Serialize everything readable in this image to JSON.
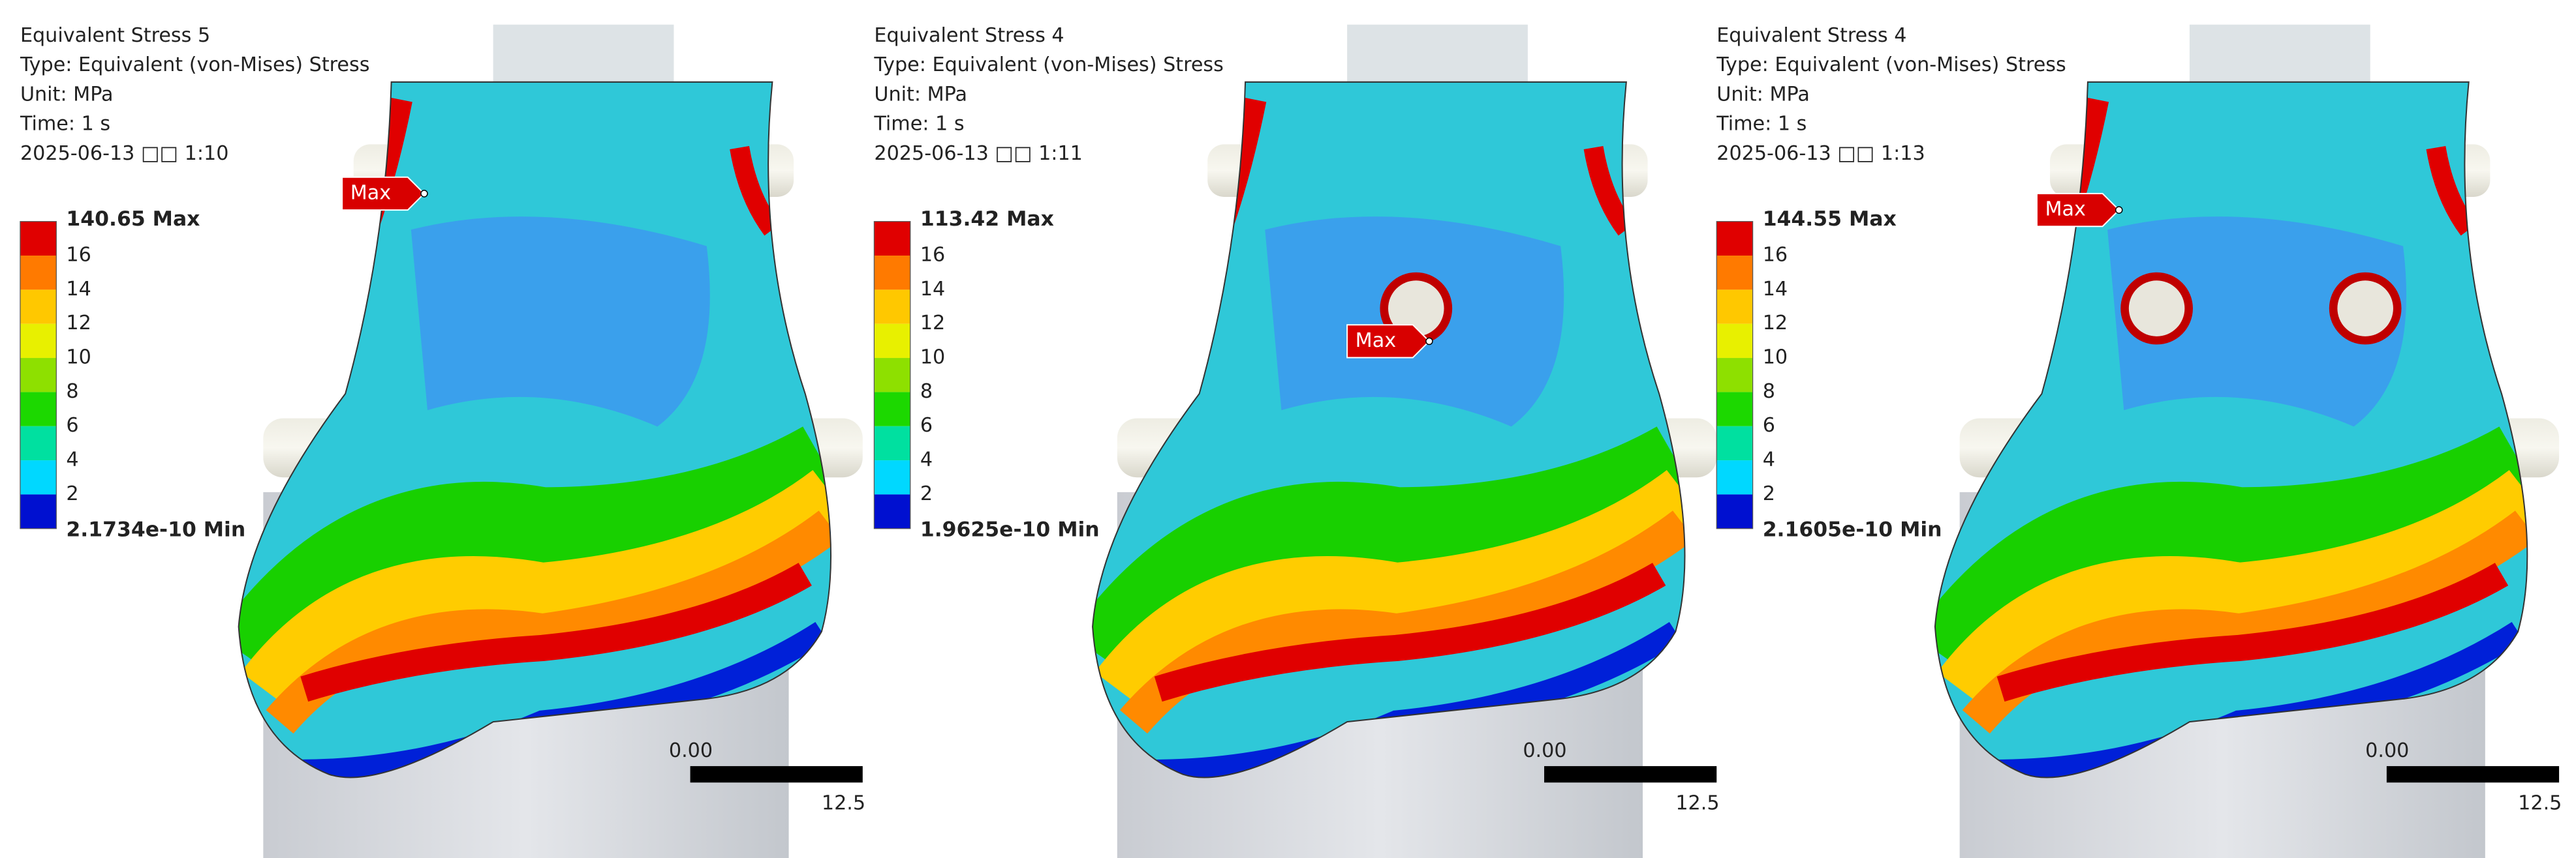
{
  "panels": [
    {
      "title": "Equivalent Stress 5",
      "type": "Type: Equivalent (von-Mises) Stress",
      "unit": "Unit: MPa",
      "time": "Time: 1 s",
      "date": "2025-06-13 □□ 1:10",
      "legend_max": "140.65 Max",
      "legend_ticks": [
        16,
        14,
        12,
        10,
        8,
        6,
        4,
        2
      ],
      "legend_min": "2.1734e-10 Min",
      "probe": "Max",
      "scale_start": "0.00",
      "scale_end": "12.5"
    },
    {
      "title": "Equivalent Stress 4",
      "type": "Type: Equivalent (von-Mises) Stress",
      "unit": "Unit: MPa",
      "time": "Time: 1 s",
      "date": "2025-06-13 □□ 1:11",
      "legend_max": "113.42 Max",
      "legend_ticks": [
        16,
        14,
        12,
        10,
        8,
        6,
        4,
        2
      ],
      "legend_min": "1.9625e-10 Min",
      "probe": "Max",
      "scale_start": "0.00",
      "scale_end": "12.5"
    },
    {
      "title": "Equivalent Stress 4",
      "type": "Type: Equivalent (von-Mises) Stress",
      "unit": "Unit: MPa",
      "time": "Time: 1 s",
      "date": "2025-06-13 □□ 1:13",
      "legend_max": "144.55 Max",
      "legend_ticks": [
        16,
        14,
        12,
        10,
        8,
        6,
        4,
        2
      ],
      "legend_min": "2.1605e-10 Min",
      "probe": "Max",
      "scale_start": "0.00",
      "scale_end": "12.5"
    }
  ]
}
